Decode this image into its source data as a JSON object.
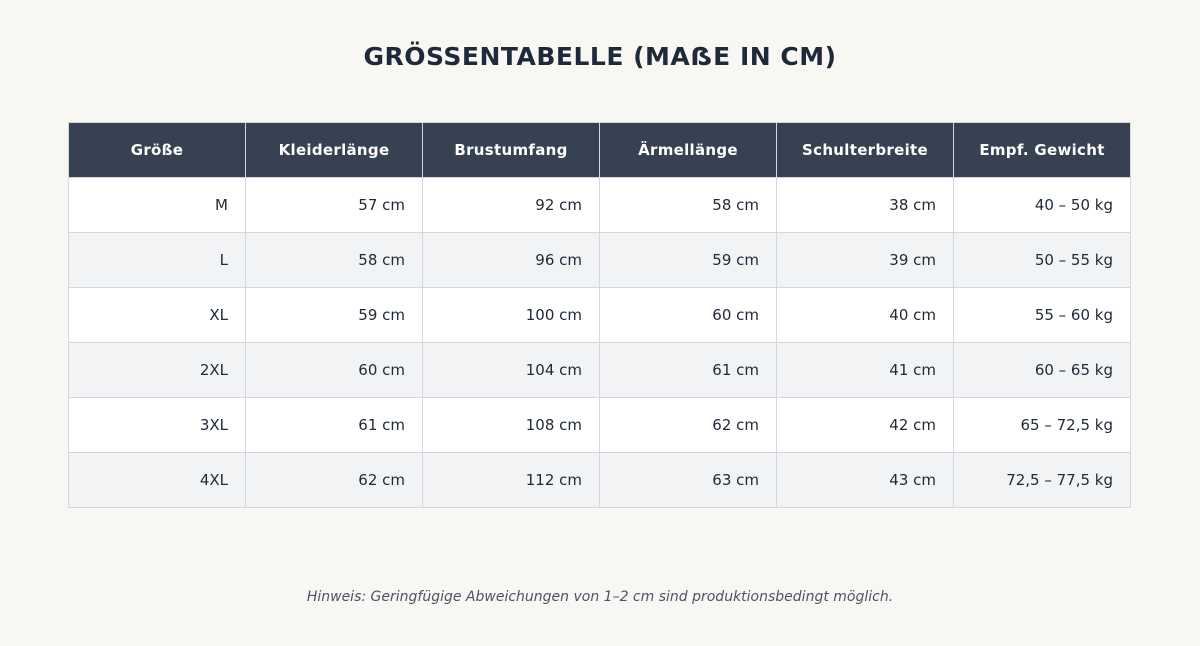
{
  "title": "GRÖSSENTABELLE (MAẞE IN CM)",
  "table": {
    "headers": [
      "Größe",
      "Kleiderlänge",
      "Brustumfang",
      "Ärmellänge",
      "Schulterbreite",
      "Empf. Gewicht"
    ],
    "rows": [
      [
        "M",
        "57 cm",
        "92 cm",
        "58 cm",
        "38 cm",
        "40 – 50 kg"
      ],
      [
        "L",
        "58 cm",
        "96 cm",
        "59 cm",
        "39 cm",
        "50 – 55 kg"
      ],
      [
        "XL",
        "59 cm",
        "100 cm",
        "60 cm",
        "40 cm",
        "55 – 60 kg"
      ],
      [
        "2XL",
        "60 cm",
        "104 cm",
        "61 cm",
        "41 cm",
        "60 – 65 kg"
      ],
      [
        "3XL",
        "61 cm",
        "108 cm",
        "62 cm",
        "42 cm",
        "65 – 72,5 kg"
      ],
      [
        "4XL",
        "62 cm",
        "112 cm",
        "63 cm",
        "43 cm",
        "72,5 – 77,5 kg"
      ]
    ]
  },
  "note": "Hinweis: Geringfügige Abweichungen von 1–2 cm sind produktionsbedingt möglich.",
  "colors": {
    "background": "#f8f7f4",
    "header_background": "#364152",
    "header_text": "#ffffff",
    "row_alt": "#f2f3f5",
    "border": "#d4d7dd"
  }
}
